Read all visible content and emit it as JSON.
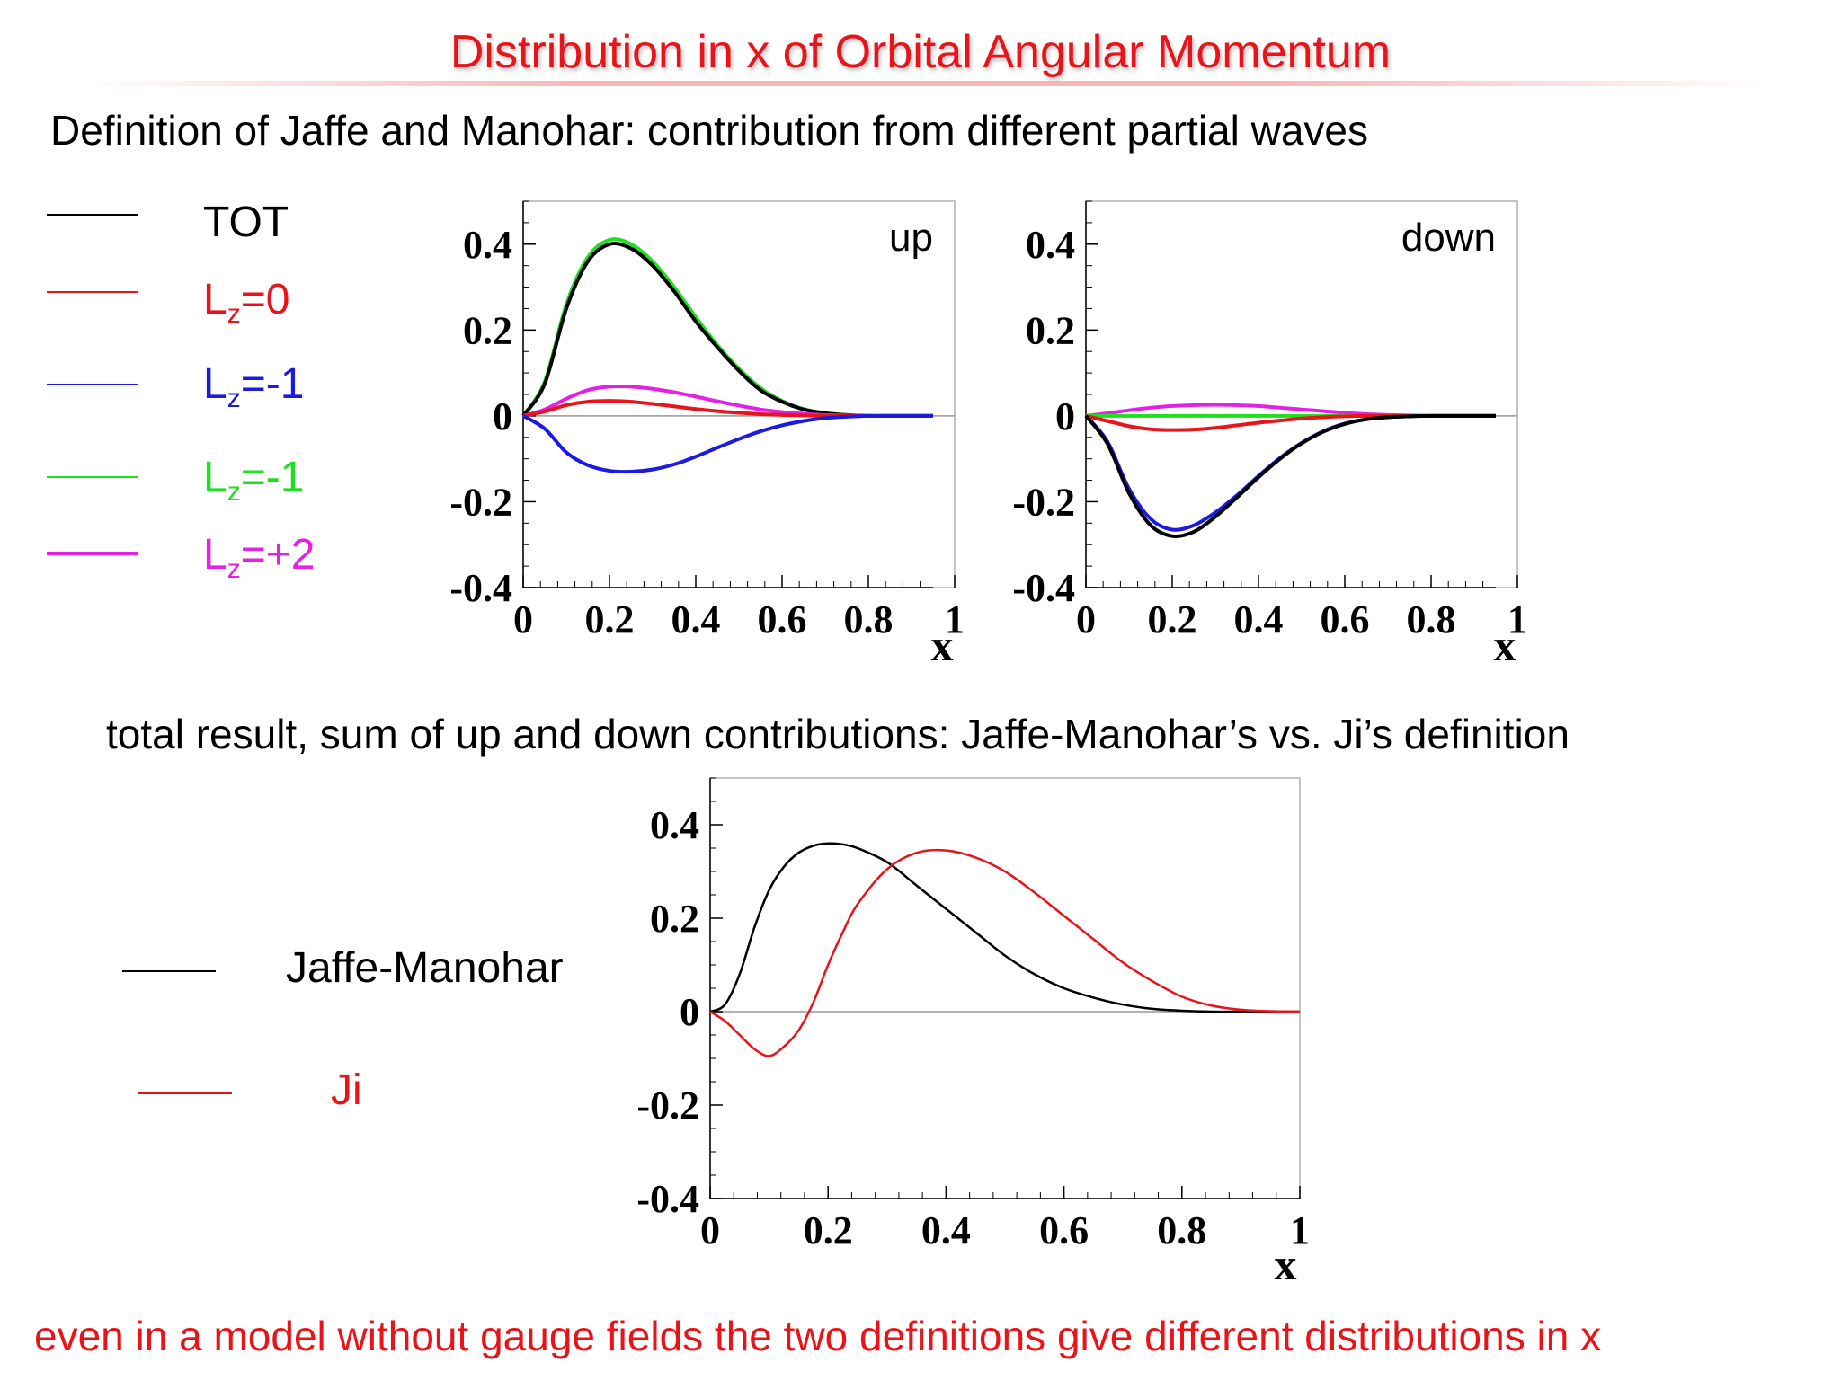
{
  "slide": {
    "title": "Distribution in x of Orbital Angular Momentum",
    "subtitle": "Definition of Jaffe and Manohar: contribution from different partial waves",
    "middle_text": "total result, sum of up and down contributions: Jaffe-Manohar’s vs. Ji’s definition",
    "footer": "even in a model without gauge fields the two definitions give different distributions in x"
  },
  "legend_top": [
    {
      "label": "TOT",
      "sub": "",
      "suffix": "",
      "color": "#000000"
    },
    {
      "label": "L",
      "sub": "z",
      "suffix": "=0",
      "color": "#e8141a"
    },
    {
      "label": "L",
      "sub": "z",
      "suffix": "=-1",
      "color": "#1a1ae0"
    },
    {
      "label": "L",
      "sub": "z",
      "suffix": "=-1",
      "color": "#1fe01f"
    },
    {
      "label": "L",
      "sub": "z",
      "suffix": "=+2",
      "color": "#e61fe6"
    }
  ],
  "legend_bottom": [
    {
      "label": "Jaffe-Manohar",
      "color": "#000000"
    },
    {
      "label": "Ji",
      "color": "#e8141a"
    }
  ],
  "chart_data": [
    {
      "type": "line",
      "panel_label": "up",
      "xlabel": "x",
      "xlim": [
        0,
        1
      ],
      "ylim": [
        -0.4,
        0.5
      ],
      "xticks": [
        "0",
        "0.2",
        "0.4",
        "0.6",
        "0.8",
        "1"
      ],
      "yticks": [
        "-0.4",
        "-0.2",
        "0",
        "0.2",
        "0.4"
      ],
      "x": [
        0,
        0.05,
        0.1,
        0.15,
        0.2,
        0.25,
        0.3,
        0.35,
        0.4,
        0.45,
        0.5,
        0.55,
        0.6,
        0.65,
        0.7,
        0.75,
        0.8,
        0.85,
        0.9,
        0.95
      ],
      "series": [
        {
          "color": "#1fe01f",
          "values": [
            0,
            0.08,
            0.26,
            0.37,
            0.41,
            0.4,
            0.36,
            0.3,
            0.23,
            0.165,
            0.11,
            0.065,
            0.035,
            0.016,
            0.007,
            0.002,
            0,
            0,
            0,
            0
          ]
        },
        {
          "color": "#000000",
          "values": [
            0,
            0.075,
            0.25,
            0.36,
            0.4,
            0.39,
            0.35,
            0.29,
            0.22,
            0.16,
            0.105,
            0.06,
            0.033,
            0.015,
            0.006,
            0.002,
            0,
            0,
            0,
            0
          ]
        },
        {
          "color": "#e61fe6",
          "values": [
            0,
            0.015,
            0.04,
            0.06,
            0.068,
            0.068,
            0.063,
            0.055,
            0.045,
            0.034,
            0.024,
            0.015,
            0.009,
            0.005,
            0.002,
            0.001,
            0,
            0,
            0,
            0
          ]
        },
        {
          "color": "#e8141a",
          "values": [
            0,
            0.01,
            0.025,
            0.033,
            0.035,
            0.033,
            0.028,
            0.022,
            0.016,
            0.011,
            0.007,
            0.004,
            0.002,
            0.001,
            0,
            0,
            0,
            0,
            0,
            0
          ]
        },
        {
          "color": "#1a1ae0",
          "values": [
            0,
            -0.03,
            -0.085,
            -0.115,
            -0.128,
            -0.13,
            -0.125,
            -0.113,
            -0.095,
            -0.074,
            -0.054,
            -0.036,
            -0.022,
            -0.012,
            -0.005,
            -0.002,
            0,
            0,
            0,
            0
          ]
        }
      ]
    },
    {
      "type": "line",
      "panel_label": "down",
      "xlabel": "x",
      "xlim": [
        0,
        1
      ],
      "ylim": [
        -0.4,
        0.5
      ],
      "xticks": [
        "0",
        "0.2",
        "0.4",
        "0.6",
        "0.8",
        "1"
      ],
      "yticks": [
        "-0.4",
        "-0.2",
        "0",
        "0.2",
        "0.4"
      ],
      "x": [
        0,
        0.05,
        0.1,
        0.15,
        0.2,
        0.25,
        0.3,
        0.35,
        0.4,
        0.45,
        0.5,
        0.55,
        0.6,
        0.65,
        0.7,
        0.75,
        0.8,
        0.85,
        0.9,
        0.95
      ],
      "series": [
        {
          "color": "#e61fe6",
          "values": [
            0,
            0.006,
            0.013,
            0.019,
            0.023,
            0.025,
            0.026,
            0.025,
            0.023,
            0.019,
            0.015,
            0.011,
            0.007,
            0.004,
            0.002,
            0.001,
            0,
            0,
            0,
            0
          ]
        },
        {
          "color": "#1fe01f",
          "values": [
            0,
            0,
            0,
            0,
            0,
            0,
            0,
            0,
            0,
            0,
            0,
            0,
            0,
            0,
            0,
            0,
            0,
            0,
            0,
            0
          ]
        },
        {
          "color": "#e8141a",
          "values": [
            0,
            -0.012,
            -0.024,
            -0.031,
            -0.033,
            -0.032,
            -0.028,
            -0.022,
            -0.016,
            -0.011,
            -0.006,
            -0.003,
            -0.001,
            0,
            0,
            0,
            0,
            0,
            0,
            0
          ]
        },
        {
          "color": "#1a1ae0",
          "values": [
            0,
            -0.06,
            -0.17,
            -0.24,
            -0.265,
            -0.255,
            -0.225,
            -0.185,
            -0.14,
            -0.098,
            -0.063,
            -0.036,
            -0.018,
            -0.008,
            -0.003,
            -0.001,
            0,
            0,
            0,
            0
          ]
        },
        {
          "color": "#000000",
          "values": [
            0,
            -0.065,
            -0.18,
            -0.255,
            -0.28,
            -0.27,
            -0.235,
            -0.19,
            -0.143,
            -0.1,
            -0.064,
            -0.037,
            -0.019,
            -0.008,
            -0.003,
            -0.001,
            0,
            0,
            0,
            0
          ]
        }
      ]
    },
    {
      "type": "line",
      "panel_label": "",
      "xlabel": "x",
      "xlim": [
        0,
        1
      ],
      "ylim": [
        -0.4,
        0.5
      ],
      "xticks": [
        "0",
        "0.2",
        "0.4",
        "0.6",
        "0.8",
        "1"
      ],
      "yticks": [
        "-0.4",
        "-0.2",
        "0",
        "0.2",
        "0.4"
      ],
      "x": [
        0,
        0.025,
        0.05,
        0.075,
        0.1,
        0.125,
        0.15,
        0.175,
        0.2,
        0.225,
        0.25,
        0.3,
        0.35,
        0.4,
        0.45,
        0.5,
        0.55,
        0.6,
        0.65,
        0.7,
        0.75,
        0.8,
        0.85,
        0.9,
        0.95,
        1.0
      ],
      "series": [
        {
          "color": "#000000",
          "values": [
            0,
            0.015,
            0.08,
            0.18,
            0.26,
            0.31,
            0.34,
            0.355,
            0.36,
            0.358,
            0.35,
            0.32,
            0.27,
            0.22,
            0.17,
            0.12,
            0.08,
            0.05,
            0.03,
            0.015,
            0.006,
            0.002,
            0,
            0,
            0,
            0
          ]
        },
        {
          "color": "#e8141a",
          "values": [
            0,
            -0.02,
            -0.05,
            -0.08,
            -0.095,
            -0.075,
            -0.04,
            0.02,
            0.1,
            0.17,
            0.23,
            0.305,
            0.34,
            0.345,
            0.33,
            0.3,
            0.255,
            0.205,
            0.155,
            0.105,
            0.065,
            0.032,
            0.013,
            0.004,
            0.001,
            0
          ]
        }
      ]
    }
  ]
}
